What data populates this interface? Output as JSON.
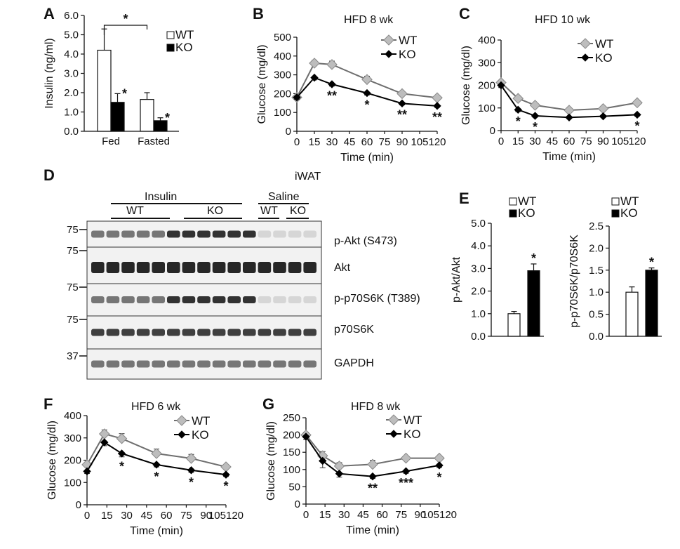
{
  "chart_data": [
    {
      "id": "A",
      "panel_label": "A",
      "type": "bar",
      "categories": [
        "Fed",
        "Fasted"
      ],
      "series": [
        {
          "name": "WT",
          "values": [
            4.2,
            1.65
          ],
          "errors": [
            1.1,
            0.35
          ],
          "color": "#ffffff"
        },
        {
          "name": "KO",
          "values": [
            1.5,
            0.55
          ],
          "errors": [
            0.45,
            0.15
          ],
          "color": "#000000"
        }
      ],
      "ylabel": "Insulin (ng/ml)",
      "ylim": [
        0,
        6
      ],
      "yticks": [
        "0.0",
        "1.0",
        "2.0",
        "3.0",
        "4.0",
        "5.0",
        "6.0"
      ],
      "stars": [
        {
          "group": 0,
          "series": 1,
          "text": "*"
        },
        {
          "group": 1,
          "series": 1,
          "text": "*"
        }
      ],
      "bracket": {
        "from": 0,
        "to": 1,
        "text": "*"
      },
      "legend_position": "top-right"
    },
    {
      "id": "B",
      "panel_label": "B",
      "type": "line",
      "title": "HFD  8 wk",
      "x": [
        0,
        15,
        30,
        60,
        90,
        120
      ],
      "xticks": [
        "0",
        "15",
        "30",
        "45",
        "60",
        "75",
        "90",
        "105",
        "120"
      ],
      "xlim": [
        0,
        120
      ],
      "series": [
        {
          "name": "WT",
          "values": [
            180,
            362,
            355,
            275,
            200,
            178
          ],
          "errors": [
            10,
            15,
            18,
            18,
            8,
            8
          ],
          "marker": "gray-diamond",
          "color": "#6e6e6e"
        },
        {
          "name": "KO",
          "values": [
            180,
            285,
            250,
            203,
            148,
            135
          ],
          "errors": [
            10,
            12,
            10,
            10,
            8,
            8
          ],
          "marker": "black-diamond",
          "color": "#000000"
        }
      ],
      "xlabel": "Time (min)",
      "ylabel": "Glucose (mg/dl)",
      "ylim": [
        0,
        500
      ],
      "yticks": [
        "0",
        "100",
        "200",
        "300",
        "400",
        "500"
      ],
      "stars": [
        {
          "x": 30,
          "text": "**"
        },
        {
          "x": 60,
          "text": "*"
        },
        {
          "x": 90,
          "text": "**"
        },
        {
          "x": 120,
          "text": "**"
        }
      ],
      "legend_position": "top-right"
    },
    {
      "id": "C",
      "panel_label": "C",
      "type": "line",
      "title": "HFD  10 wk",
      "x": [
        0,
        15,
        30,
        60,
        90,
        120
      ],
      "xticks": [
        "0",
        "15",
        "30",
        "45",
        "60",
        "75",
        "90",
        "105",
        "120"
      ],
      "xlim": [
        0,
        120
      ],
      "series": [
        {
          "name": "WT",
          "values": [
            212,
            142,
            112,
            90,
            97,
            123
          ],
          "errors": [
            10,
            10,
            8,
            6,
            6,
            8
          ],
          "marker": "gray-diamond",
          "color": "#6e6e6e"
        },
        {
          "name": "KO",
          "values": [
            200,
            92,
            65,
            58,
            63,
            70
          ],
          "errors": [
            10,
            8,
            6,
            5,
            5,
            6
          ],
          "marker": "black-diamond",
          "color": "#000000"
        }
      ],
      "xlabel": "Time (min)",
      "ylabel": "Glucose (mg/dl)",
      "ylim": [
        0,
        400
      ],
      "yticks": [
        "0",
        "100",
        "200",
        "300",
        "400"
      ],
      "stars": [
        {
          "x": 15,
          "text": "*"
        },
        {
          "x": 30,
          "text": "*"
        },
        {
          "x": 120,
          "text": "*"
        }
      ],
      "legend_position": "top-right"
    },
    {
      "id": "E1",
      "panel_label": "E",
      "type": "bar",
      "categories": [
        "WT",
        "KO"
      ],
      "values": [
        1.0,
        2.9
      ],
      "errors": [
        0.1,
        0.3
      ],
      "colors": [
        "#ffffff",
        "#000000"
      ],
      "ylabel": "p-Akt/Akt",
      "ylim": [
        0,
        5
      ],
      "yticks": [
        "0.0",
        "1.0",
        "2.0",
        "3.0",
        "4.0",
        "5.0"
      ],
      "stars": [
        {
          "index": 1,
          "text": "*"
        }
      ],
      "legend": [
        "WT",
        "KO"
      ],
      "legend_position": "top-left"
    },
    {
      "id": "E2",
      "type": "bar",
      "categories": [
        "WT",
        "KO"
      ],
      "values": [
        1.0,
        1.5
      ],
      "errors": [
        0.12,
        0.05
      ],
      "colors": [
        "#ffffff",
        "#000000"
      ],
      "ylabel": "p-p70S6K/p70S6K",
      "ylim": [
        0,
        2.5
      ],
      "yticks": [
        "0.0",
        "0.5",
        "1.0",
        "1.5",
        "2.0",
        "2.5"
      ],
      "stars": [
        {
          "index": 1,
          "text": "*"
        }
      ],
      "legend": [
        "WT",
        "KO"
      ],
      "legend_position": "top-left"
    },
    {
      "id": "F",
      "panel_label": "F",
      "type": "line",
      "title": "HFD 6 wk",
      "x": [
        0,
        15,
        30,
        60,
        90,
        120
      ],
      "xticks": [
        "0",
        "15",
        "30",
        "45",
        "60",
        "75",
        "90",
        "105120"
      ],
      "xlim": [
        0,
        120
      ],
      "series": [
        {
          "name": "WT",
          "values": [
            180,
            318,
            297,
            230,
            208,
            170
          ],
          "errors": [
            10,
            18,
            22,
            20,
            18,
            8
          ],
          "marker": "gray-diamond",
          "color": "#6e6e6e"
        },
        {
          "name": "KO",
          "values": [
            150,
            280,
            230,
            180,
            155,
            135
          ],
          "errors": [
            10,
            15,
            15,
            10,
            10,
            8
          ],
          "marker": "black-diamond",
          "color": "#000000"
        }
      ],
      "xlabel": "Time (min)",
      "ylabel": "Glucose (mg/dl)",
      "ylim": [
        0,
        400
      ],
      "yticks": [
        "0",
        "100",
        "200",
        "300",
        "400"
      ],
      "stars": [
        {
          "x": 30,
          "text": "*"
        },
        {
          "x": 60,
          "text": "*"
        },
        {
          "x": 90,
          "text": "*"
        },
        {
          "x": 120,
          "text": "*"
        }
      ],
      "legend_position": "top-right"
    },
    {
      "id": "G",
      "panel_label": "G",
      "type": "line",
      "title": "HFD 8 wk",
      "x": [
        0,
        15,
        30,
        60,
        90,
        120
      ],
      "xticks": [
        "0",
        "15",
        "30",
        "45",
        "60",
        "75",
        "90",
        "105120"
      ],
      "xlim": [
        0,
        120
      ],
      "series": [
        {
          "name": "WT",
          "values": [
            200,
            140,
            110,
            115,
            133,
            133
          ],
          "errors": [
            8,
            12,
            10,
            12,
            5,
            5
          ],
          "marker": "gray-diamond",
          "color": "#6e6e6e"
        },
        {
          "name": "KO",
          "values": [
            195,
            125,
            88,
            80,
            95,
            112
          ],
          "errors": [
            8,
            20,
            10,
            6,
            6,
            6
          ],
          "marker": "black-diamond",
          "color": "#000000"
        }
      ],
      "xlabel": "Time (min)",
      "ylabel": "Glucose (mg/dl)",
      "ylim": [
        0,
        250
      ],
      "yticks": [
        "0",
        "50",
        "100",
        "150",
        "200",
        "250"
      ],
      "stars": [
        {
          "x": 60,
          "text": "**"
        },
        {
          "x": 90,
          "text": "***"
        },
        {
          "x": 120,
          "text": "*"
        }
      ],
      "legend_position": "top-right"
    }
  ],
  "western_blot": {
    "panel_label": "D",
    "tissue": "iWAT",
    "groups": [
      {
        "label": "Insulin",
        "subgroups": [
          "WT",
          "KO"
        ]
      },
      {
        "label": "Saline",
        "subgroups": [
          "WT",
          "KO"
        ]
      }
    ],
    "rows": [
      {
        "label": "p-Akt (S473)",
        "marker": "75",
        "pattern": "insulin-strong"
      },
      {
        "label": "Akt",
        "marker": "75",
        "pattern": "uniform-heavy"
      },
      {
        "label": "p-p70S6K (T389)",
        "marker": "75",
        "pattern": "insulin-strong"
      },
      {
        "label": "p70S6K",
        "marker": "75",
        "pattern": "uniform"
      },
      {
        "label": "GAPDH",
        "marker": "37",
        "pattern": "uniform-light"
      }
    ],
    "lanes": 15
  }
}
